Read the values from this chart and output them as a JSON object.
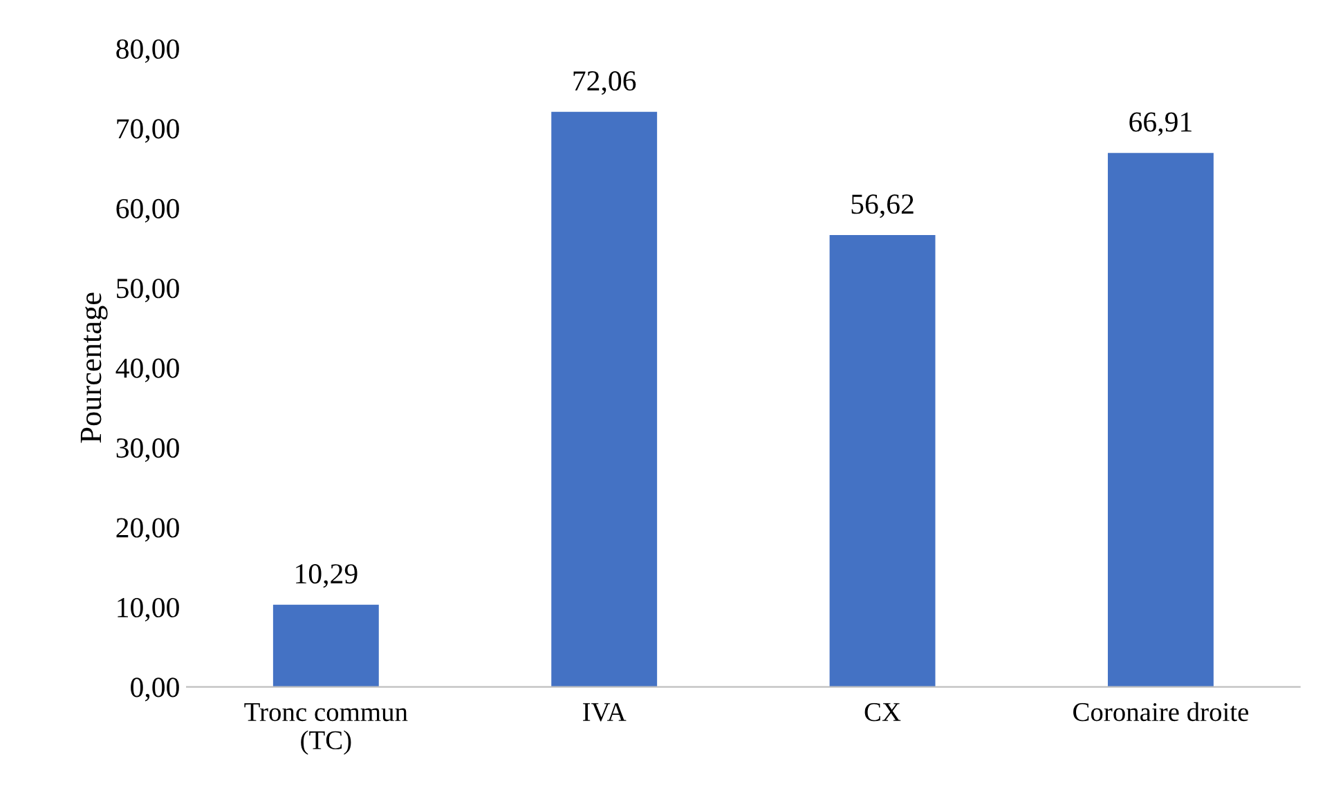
{
  "chart_data": {
    "type": "bar",
    "ylabel": "Pourcentage",
    "categories": [
      "Tronc commun\n(TC)",
      "IVA",
      "CX",
      "Coronaire droite"
    ],
    "values": [
      10.29,
      72.06,
      56.62,
      66.91
    ],
    "value_labels": [
      "10,29",
      "72,06",
      "56,62",
      "66,91"
    ],
    "color": "#4472c4",
    "ylim": [
      0,
      80
    ],
    "yticks": [
      {
        "value": 0,
        "label": "0,00"
      },
      {
        "value": 10,
        "label": "10,00"
      },
      {
        "value": 20,
        "label": "20,00"
      },
      {
        "value": 30,
        "label": "30,00"
      },
      {
        "value": 40,
        "label": "40,00"
      },
      {
        "value": 50,
        "label": "50,00"
      },
      {
        "value": 60,
        "label": "60,00"
      },
      {
        "value": 70,
        "label": "70,00"
      },
      {
        "value": 80,
        "label": "80,00"
      }
    ],
    "grid": false
  }
}
